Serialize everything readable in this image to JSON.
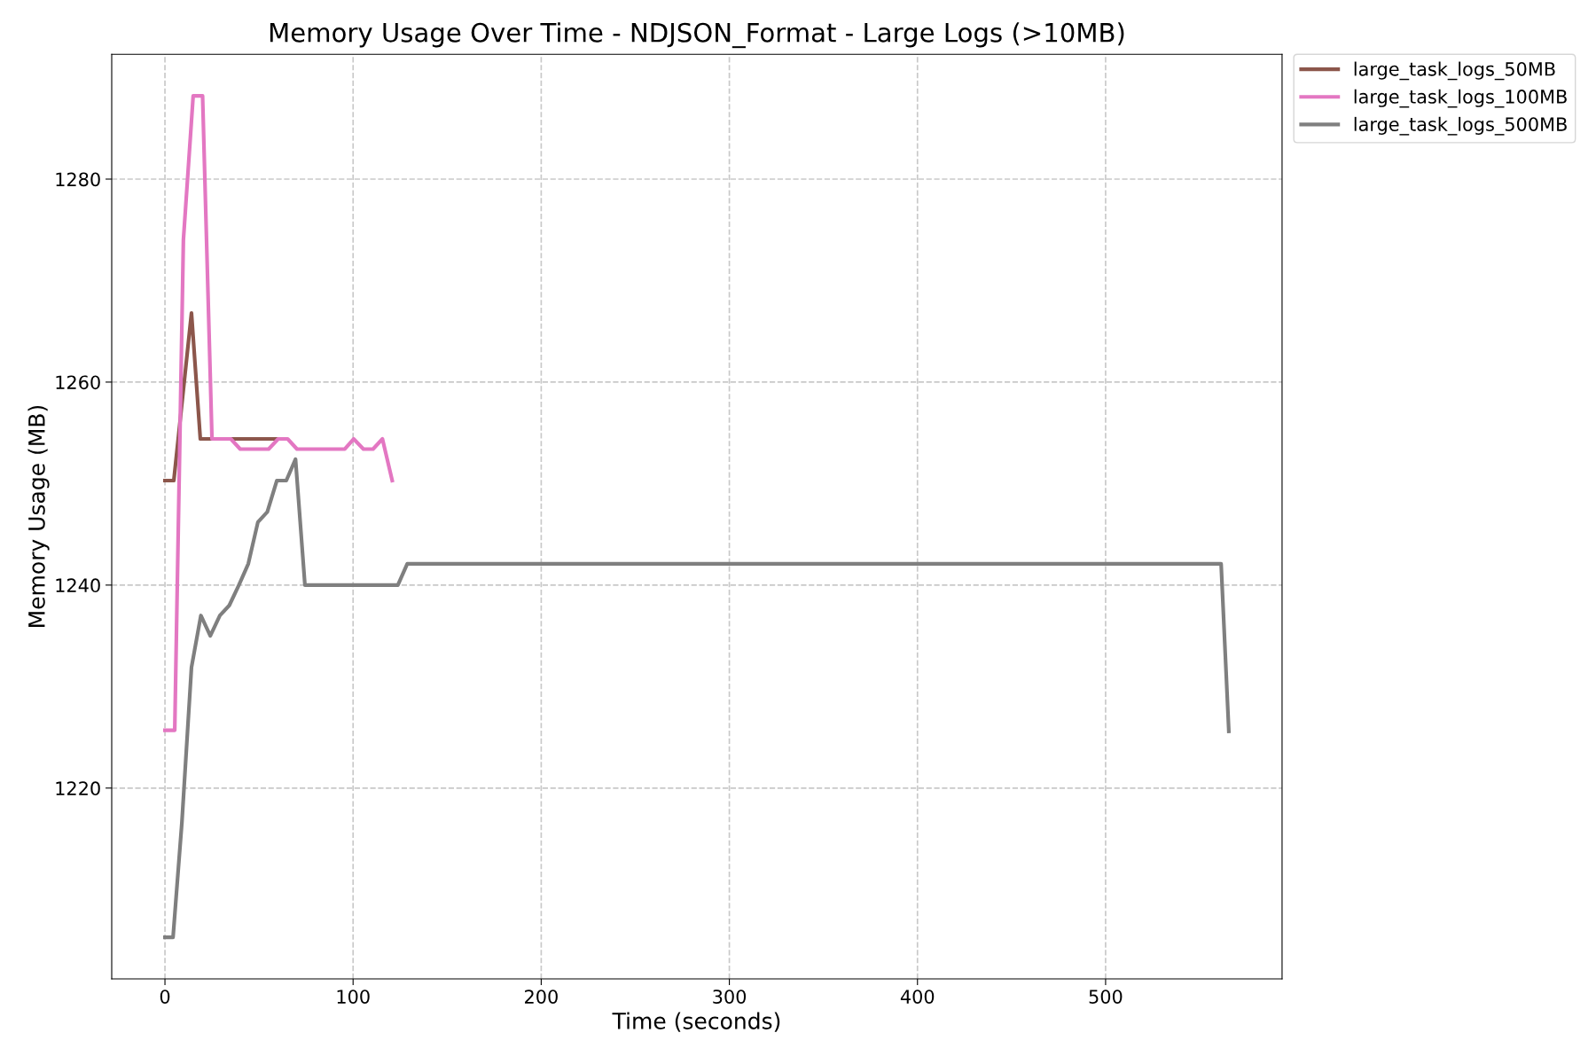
{
  "chart_data": {
    "type": "line",
    "title": "Memory Usage Over Time - NDJSON_Format - Large Logs (>10MB)",
    "xlabel": "Time (seconds)",
    "ylabel": "Memory Usage (MB)",
    "series": [
      {
        "name": "large_task_logs_50MB",
        "color": "#8c564b",
        "x": [
          0,
          4.7,
          14.1,
          18.8,
          59.5
        ],
        "values": [
          1250.3,
          1250.3,
          1266.8,
          1254.4,
          1254.4
        ]
      },
      {
        "name": "large_task_logs_100MB",
        "color": "#e377c2",
        "x": [
          0,
          5.2,
          9.8,
          15.0,
          20.0,
          25.0,
          35.0,
          40.0,
          55.1,
          60.2,
          65.2,
          70.2,
          95.6,
          100.3,
          105.5,
          110.6,
          115.6,
          120.8
        ],
        "values": [
          1225.7,
          1225.7,
          1274.0,
          1288.2,
          1288.2,
          1254.4,
          1254.4,
          1253.4,
          1253.4,
          1254.4,
          1254.4,
          1253.4,
          1253.4,
          1254.4,
          1253.4,
          1253.4,
          1254.4,
          1250.3
        ]
      },
      {
        "name": "large_task_logs_500MB",
        "color": "#7f7f7f",
        "x": [
          0,
          4.3,
          9.0,
          14.1,
          19.1,
          24.1,
          29.2,
          34.2,
          39.3,
          44.3,
          49.4,
          54.4,
          59.5,
          64.5,
          69.4,
          74.4,
          123.8,
          128.8,
          561.4,
          565.5
        ],
        "values": [
          1205.3,
          1205.3,
          1216.6,
          1231.9,
          1237.0,
          1235.0,
          1237.0,
          1238.0,
          1240.0,
          1242.1,
          1246.2,
          1247.2,
          1250.3,
          1250.3,
          1252.4,
          1240.0,
          1240.0,
          1242.1,
          1242.1,
          1225.6
        ]
      }
    ],
    "xlim": [
      -28.3,
      593.8
    ],
    "ylim": [
      1201.2,
      1292.3
    ],
    "xticks": [
      0,
      100,
      200,
      300,
      400,
      500
    ],
    "yticks": [
      1220,
      1240,
      1260,
      1280
    ],
    "grid": true,
    "legend": "top right",
    "marker": "none",
    "line_style": "solid"
  }
}
